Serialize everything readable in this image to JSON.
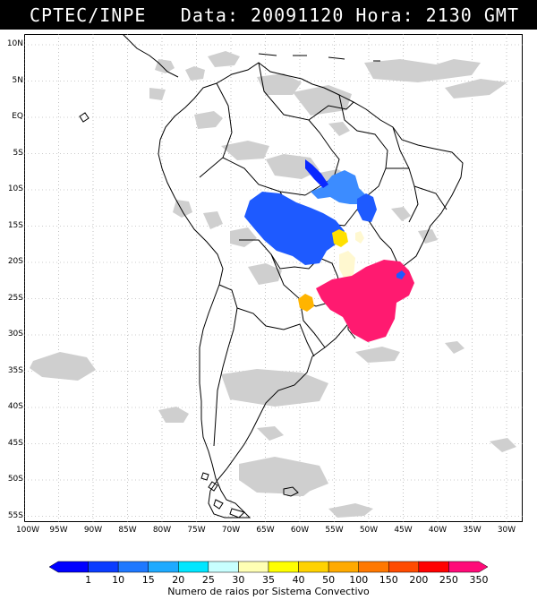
{
  "header": {
    "source": "CPTEC/INPE",
    "timestamp": "Data: 20091120 Hora: 2130 GMT"
  },
  "map": {
    "lat_labels": [
      "10N",
      "5N",
      "EQ",
      "5S",
      "10S",
      "15S",
      "20S",
      "25S",
      "30S",
      "35S",
      "40S",
      "45S",
      "50S",
      "55S"
    ],
    "lon_labels": [
      "100W",
      "95W",
      "90W",
      "85W",
      "80W",
      "75W",
      "70W",
      "65W",
      "60W",
      "55W",
      "50W",
      "45W",
      "40W",
      "35W",
      "30W"
    ],
    "cloud_color": "#cfcfcf",
    "land_outline_color": "#000000",
    "grid_color": "#999999"
  },
  "legend": {
    "caption": "Numero de raios por Sistema Convectivo",
    "values": [
      "1",
      "10",
      "15",
      "20",
      "25",
      "30",
      "35",
      "40",
      "50",
      "100",
      "150",
      "200",
      "250",
      "350"
    ],
    "colors": [
      "#0000ff",
      "#0a3cff",
      "#1e78ff",
      "#1eaaff",
      "#00e6ff",
      "#c8ffff",
      "#ffffb4",
      "#ffff00",
      "#ffd200",
      "#ffaa00",
      "#ff7800",
      "#ff4b00",
      "#ff0000",
      "#ff0a78"
    ]
  },
  "storm_colors": {
    "blue": "#1e5aff",
    "light_blue": "#3c8cff",
    "dark_blue": "#0a28ff",
    "yellow": "#ffe000",
    "orange": "#ffb400",
    "pale": "#fff8d0",
    "magenta": "#ff1a70"
  }
}
